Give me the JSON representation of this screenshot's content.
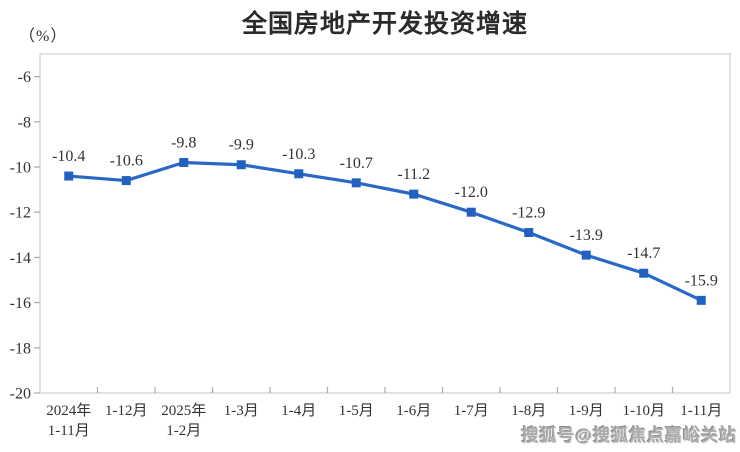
{
  "watermark": "搜狐号@搜狐焦点嘉峪关站",
  "colors": {
    "line": "#2A68C8",
    "marker": "#2361BE",
    "label_text": "#333333",
    "axis_border": "#D9D9D9",
    "tick": "#ABABAB",
    "title_text": "#2B2B2B",
    "watermark_text": "#AAAAAA"
  },
  "chart_data": {
    "type": "line",
    "title": "全国房地产开发投资增速",
    "ylabel": "（%）",
    "xlabel": "",
    "categories": [
      "2024年\n1-11月",
      "1-12月",
      "2025年\n1-2月",
      "1-3月",
      "1-4月",
      "1-5月",
      "1-6月",
      "1-7月",
      "1-8月",
      "1-9月",
      "1-10月",
      "1-11月"
    ],
    "values": [
      -10.4,
      -10.6,
      -9.8,
      -9.9,
      -10.3,
      -10.7,
      -11.2,
      -12.0,
      -12.9,
      -13.9,
      -14.7,
      -15.9
    ],
    "point_labels": [
      "-10.4",
      "-10.6",
      "-9.8",
      "-9.9",
      "-10.3",
      "-10.7",
      "-11.2",
      "-12.0",
      "-12.9",
      "-13.9",
      "-14.7",
      "-15.9"
    ],
    "ylim": [
      -20,
      -5
    ],
    "yticks": [
      -6,
      -8,
      -10,
      -12,
      -14,
      -16,
      -18,
      -20
    ],
    "grid": false,
    "legend": null,
    "marker": "square"
  }
}
